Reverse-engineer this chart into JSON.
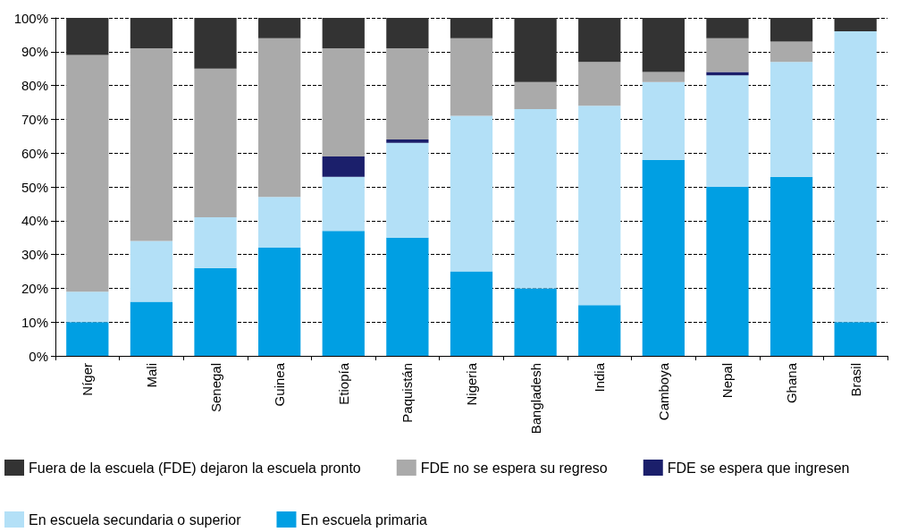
{
  "chart_data": {
    "type": "bar",
    "stacked": true,
    "categories": [
      "Níger",
      "Mali",
      "Senegal",
      "Guinea",
      "Etiopía",
      "Paquistán",
      "Nigeria",
      "Bangladesh",
      "India",
      "Camboya",
      "Nepal",
      "Ghana",
      "Brasil"
    ],
    "series": [
      {
        "name": "En escuela primaria",
        "color": "#009fe3",
        "values": [
          10,
          16,
          26,
          32,
          37,
          35,
          25,
          20,
          15,
          58,
          50,
          53,
          10
        ]
      },
      {
        "name": "En escuela secundaria o superior",
        "color": "#b3e0f7",
        "values": [
          9,
          18,
          15,
          15,
          16,
          28,
          46,
          53,
          59,
          23,
          33,
          34,
          86
        ]
      },
      {
        "name": "FDE se espera que ingresen",
        "color": "#1b1f6b",
        "values": [
          0,
          0,
          0,
          0,
          6,
          1,
          0,
          0,
          0,
          0,
          1,
          0,
          0
        ]
      },
      {
        "name": "FDE no se espera su regreso",
        "color": "#aaaaaa",
        "values": [
          70,
          57,
          44,
          47,
          32,
          27,
          23,
          8,
          13,
          3,
          10,
          6,
          0
        ]
      },
      {
        "name": "Fuera de la escuela (FDE) dejaron la escuela pronto",
        "color": "#333333",
        "values": [
          11,
          9,
          15,
          6,
          9,
          9,
          6,
          19,
          13,
          16,
          6,
          7,
          4
        ]
      }
    ],
    "ylim": [
      0,
      100
    ],
    "yticks": [
      {
        "value": 0,
        "label": "0%"
      },
      {
        "value": 10,
        "label": "10%"
      },
      {
        "value": 20,
        "label": "20%"
      },
      {
        "value": 30,
        "label": "30%"
      },
      {
        "value": 40,
        "label": "40%"
      },
      {
        "value": 50,
        "label": "50%"
      },
      {
        "value": 60,
        "label": "60%"
      },
      {
        "value": 70,
        "label": "70%"
      },
      {
        "value": 80,
        "label": "80%"
      },
      {
        "value": 90,
        "label": "90%"
      },
      {
        "value": 100,
        "label": "100%"
      }
    ],
    "grid": "y",
    "legend": "bottom"
  }
}
